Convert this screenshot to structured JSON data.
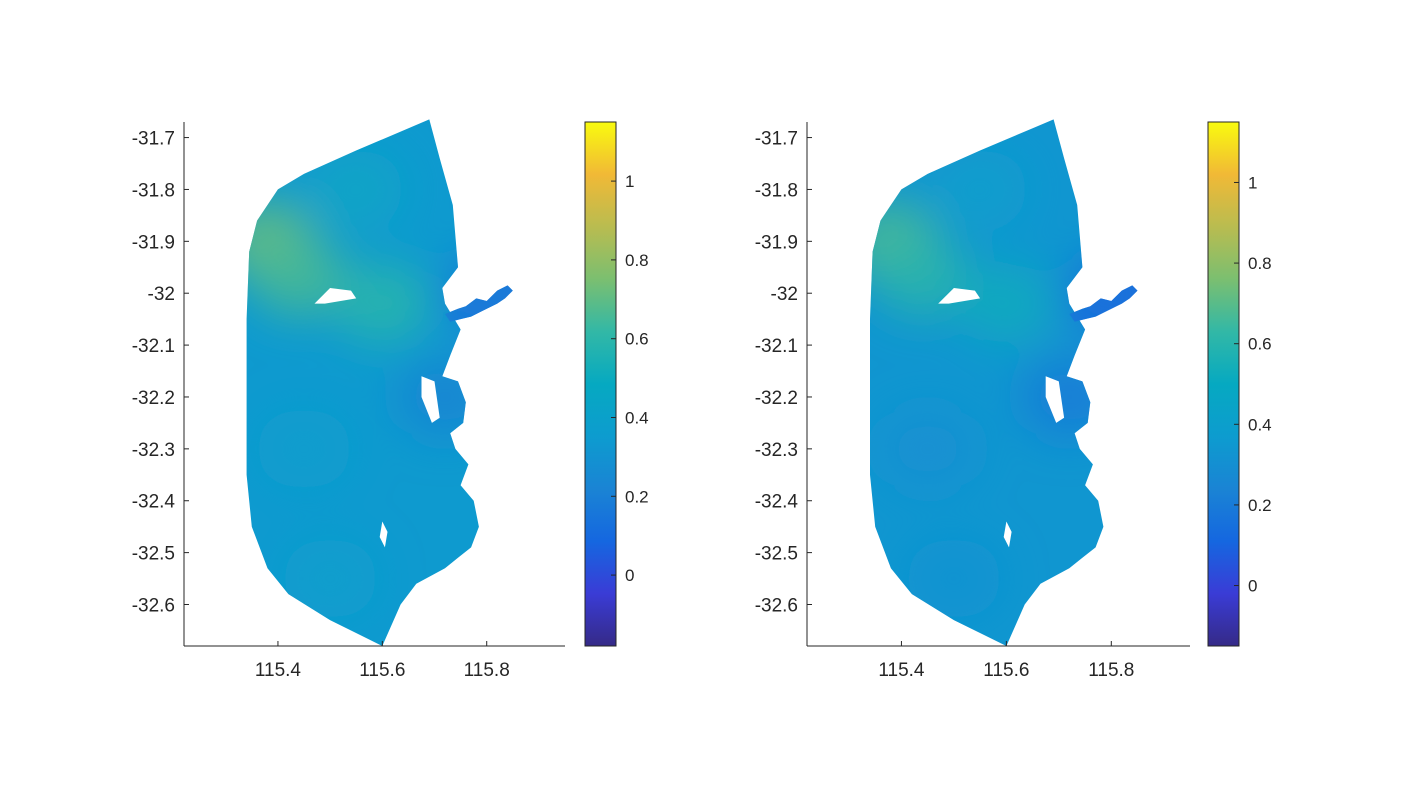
{
  "colormap": "parula",
  "chart_data": [
    {
      "type": "heatmap",
      "title": "",
      "xlabel": "",
      "ylabel": "",
      "xlim": [
        115.22,
        115.95
      ],
      "ylim": [
        -32.68,
        -31.67
      ],
      "x_ticks": [
        115.4,
        115.6,
        115.8
      ],
      "y_ticks": [
        -31.7,
        -31.8,
        -31.9,
        -32,
        -32.1,
        -32.2,
        -32.3,
        -32.4,
        -32.5,
        -32.6
      ],
      "x_tick_labels": [
        "115.4",
        "115.6",
        "115.8"
      ],
      "y_tick_labels": [
        "-31.7",
        "-31.8",
        "-31.9",
        "-32",
        "-32.1",
        "-32.2",
        "-32.3",
        "-32.4",
        "-32.5",
        "-32.6"
      ],
      "colorbar": {
        "limits": [
          -0.18,
          1.15
        ],
        "ticks": [
          0,
          0.2,
          0.4,
          0.6,
          0.8,
          1
        ],
        "tick_labels": [
          "0",
          "0.2",
          "0.4",
          "0.6",
          "0.8",
          "1"
        ]
      },
      "field_samples": [
        {
          "lon": 115.38,
          "lat": -31.9,
          "value": 0.72
        },
        {
          "lon": 115.44,
          "lat": -31.97,
          "value": 0.66
        },
        {
          "lon": 115.6,
          "lat": -32.02,
          "value": 0.6
        },
        {
          "lon": 115.55,
          "lat": -31.8,
          "value": 0.45
        },
        {
          "lon": 115.45,
          "lat": -32.3,
          "value": 0.36
        },
        {
          "lon": 115.5,
          "lat": -32.55,
          "value": 0.38
        },
        {
          "lon": 115.72,
          "lat": -32.2,
          "value": 0.22
        },
        {
          "lon": 115.8,
          "lat": -32.0,
          "value": 0.18
        }
      ]
    },
    {
      "type": "heatmap",
      "title": "",
      "xlabel": "",
      "ylabel": "",
      "xlim": [
        115.22,
        115.95
      ],
      "ylim": [
        -32.68,
        -31.67
      ],
      "x_ticks": [
        115.4,
        115.6,
        115.8
      ],
      "y_ticks": [
        -31.7,
        -31.8,
        -31.9,
        -32,
        -32.1,
        -32.2,
        -32.3,
        -32.4,
        -32.5,
        -32.6
      ],
      "x_tick_labels": [
        "115.4",
        "115.6",
        "115.8"
      ],
      "y_tick_labels": [
        "-31.7",
        "-31.8",
        "-31.9",
        "-32",
        "-32.1",
        "-32.2",
        "-32.3",
        "-32.4",
        "-32.5",
        "-32.6"
      ],
      "colorbar": {
        "limits": [
          -0.15,
          1.15
        ],
        "ticks": [
          0,
          0.2,
          0.4,
          0.6,
          0.8,
          1
        ],
        "tick_labels": [
          "0",
          "0.2",
          "0.4",
          "0.6",
          "0.8",
          "1"
        ]
      },
      "field_samples": [
        {
          "lon": 115.38,
          "lat": -31.9,
          "value": 0.68
        },
        {
          "lon": 115.44,
          "lat": -31.97,
          "value": 0.6
        },
        {
          "lon": 115.6,
          "lat": -32.02,
          "value": 0.52
        },
        {
          "lon": 115.55,
          "lat": -31.8,
          "value": 0.4
        },
        {
          "lon": 115.45,
          "lat": -32.3,
          "value": 0.3
        },
        {
          "lon": 115.5,
          "lat": -32.55,
          "value": 0.32
        },
        {
          "lon": 115.72,
          "lat": -32.2,
          "value": 0.2
        },
        {
          "lon": 115.8,
          "lat": -32.0,
          "value": 0.16
        }
      ]
    }
  ]
}
